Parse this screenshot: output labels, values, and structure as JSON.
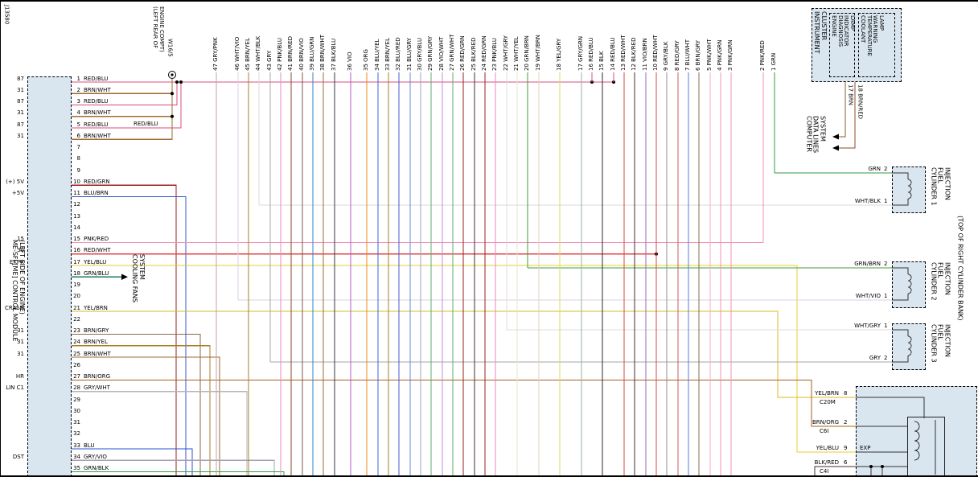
{
  "doc_id": "J13580",
  "palette": {
    "component_fill": "#d9e6f0",
    "frame": "#000000",
    "GRN": "#2f9e3f",
    "GRN/BLK": "#2f9e3f",
    "GRN/BLU": "#147a62",
    "GRN/BRN": "#3f9e35",
    "GRN/GRY": "#5cae6a",
    "GRN/WHT": "#5cae6a",
    "RED/BLU": "#d94f7e",
    "RED/GRN": "#9e1f1f",
    "RED/WHT": "#e04545",
    "RED/GRY": "#cf5a5a",
    "PNK/RED": "#f591b2",
    "PNK/GRN": "#f591b2",
    "PNK/BLU": "#ef86c0",
    "PNK/WHT": "#f8a8c8",
    "BRN/WHT": "#9c6b30",
    "BRN/GRY": "#8a6a50",
    "BRN/YEL": "#a97c28",
    "BRN/ORG": "#a5601e",
    "BRN/RED": "#8d4a2a",
    "BRN/VIO": "#7d5a46",
    "BRN": "#8b5e2a",
    "BLU/BRN": "#3a57c8",
    "BLU": "#2850d8",
    "BLU/GRN": "#2e7fd0",
    "BLU/YEL": "#3a6ad8",
    "BLU/RED": "#4858d0",
    "BLU/GRY": "#6a85d8",
    "BLU/WHT": "#5a7ae0",
    "YEL/BLU": "#e8cc30",
    "YEL/BRN": "#d8b820",
    "YEL/GRY": "#ded768",
    "GRY/WHT": "#b5b5b5",
    "GRY/VIO": "#a89fb3",
    "GRY": "#a6a6a6",
    "GRY/PNK": "#bfa6ae",
    "GRY/BLU": "#97a6bf",
    "GRY/GRN": "#9ab3a0",
    "GRY/BLK": "#8f8f8f",
    "WHT/BLK": "#d9d9d9",
    "WHT/VIO": "#dccfe6",
    "WHT/GRY": "#dcdcdc",
    "WHT/YEL": "#e8e6c8",
    "WHT/BRN": "#e0d2bd",
    "VIO": "#b05ad0",
    "VIO/BRN": "#9a6ab0",
    "VIO/WHT": "#c08ad8",
    "ORG": "#f08418",
    "BLK": "#2b2b2b",
    "BLK/BLU": "#353545",
    "BLK/RED": "#452d2d"
  },
  "module": {
    "name_lines": [
      "ME-SFI [ME] CONTROL MODULE",
      "(LEFT SIDE OF ENGINE)"
    ],
    "pins": [
      {
        "n": 1,
        "wire": "RED/BLU",
        "term": "87"
      },
      {
        "n": 2,
        "wire": "BRN/WHT",
        "term": "31"
      },
      {
        "n": 3,
        "wire": "RED/BLU",
        "term": "87"
      },
      {
        "n": 4,
        "wire": "BRN/WHT",
        "term": "31"
      },
      {
        "n": 5,
        "wire": "RED/BLU",
        "term": "87"
      },
      {
        "n": 6,
        "wire": "BRN/WHT",
        "term": "31"
      },
      {
        "n": 7,
        "wire": "",
        "term": ""
      },
      {
        "n": 8,
        "wire": "",
        "term": ""
      },
      {
        "n": 9,
        "wire": "",
        "term": ""
      },
      {
        "n": 10,
        "wire": "RED/GRN",
        "term": "(+) 5V"
      },
      {
        "n": 11,
        "wire": "BLU/BRN",
        "term": "+5V"
      },
      {
        "n": 12,
        "wire": "",
        "term": ""
      },
      {
        "n": 13,
        "wire": "",
        "term": ""
      },
      {
        "n": 14,
        "wire": "",
        "term": ""
      },
      {
        "n": 15,
        "wire": "PNK/RED",
        "term": "15"
      },
      {
        "n": 16,
        "wire": "RED/WHT",
        "term": "30"
      },
      {
        "n": 17,
        "wire": "YEL/BLU",
        "term": "EKPR"
      },
      {
        "n": 18,
        "wire": "GRN/BLU",
        "term": ""
      },
      {
        "n": 19,
        "wire": "",
        "term": ""
      },
      {
        "n": 20,
        "wire": "",
        "term": ""
      },
      {
        "n": 21,
        "wire": "YEL/BRN",
        "term": "CRASH"
      },
      {
        "n": 22,
        "wire": "",
        "term": ""
      },
      {
        "n": 23,
        "wire": "BRN/GRY",
        "term": "31"
      },
      {
        "n": 24,
        "wire": "BRN/YEL",
        "term": "31"
      },
      {
        "n": 25,
        "wire": "BRN/WHT",
        "term": "31"
      },
      {
        "n": 26,
        "wire": "",
        "term": ""
      },
      {
        "n": 27,
        "wire": "BRN/ORG",
        "term": "HR"
      },
      {
        "n": 28,
        "wire": "GRY/WHT",
        "term": "LIN C1"
      },
      {
        "n": 29,
        "wire": "",
        "term": ""
      },
      {
        "n": 30,
        "wire": "",
        "term": ""
      },
      {
        "n": 31,
        "wire": "",
        "term": ""
      },
      {
        "n": 32,
        "wire": "",
        "term": ""
      },
      {
        "n": 33,
        "wire": "BLU",
        "term": ""
      },
      {
        "n": 34,
        "wire": "GRY/VIO",
        "term": "DST"
      },
      {
        "n": 35,
        "wire": "GRN/BLK",
        "term": ""
      }
    ]
  },
  "ground_point": {
    "id": "W16/5",
    "location_lines": [
      "(LEFT REAR OF",
      "ENGINE COMPT)"
    ]
  },
  "inline_labels": {
    "red_blu_repeat": "RED/BLU"
  },
  "cooling_fans": {
    "lines": [
      "COOLING FANS",
      "SYSTEM"
    ]
  },
  "top_wires": [
    {
      "n": 47,
      "code": "GRY/PNK"
    },
    {
      "n": 46,
      "code": "WHT/VIO"
    },
    {
      "n": 45,
      "code": "BRN/YEL"
    },
    {
      "n": 44,
      "code": "WHT/BLK"
    },
    {
      "n": 43,
      "code": "GRY"
    },
    {
      "n": 42,
      "code": "PNK/BLU"
    },
    {
      "n": 41,
      "code": "BRN/RED"
    },
    {
      "n": 40,
      "code": "BRN/VIO"
    },
    {
      "n": 39,
      "code": "BLU/GRN"
    },
    {
      "n": 38,
      "code": "BRN/WHT"
    },
    {
      "n": 37,
      "code": "BLK/BLU"
    },
    {
      "n": 36,
      "code": "VIO"
    },
    {
      "n": 35,
      "code": "ORG"
    },
    {
      "n": 34,
      "code": "BLU/YEL"
    },
    {
      "n": 33,
      "code": "BRN/YEL"
    },
    {
      "n": 32,
      "code": "BLU/RED"
    },
    {
      "n": 31,
      "code": "BLU/GRY"
    },
    {
      "n": 30,
      "code": "GRY/BLU"
    },
    {
      "n": 29,
      "code": "GRN/GRY"
    },
    {
      "n": 28,
      "code": "VIO/WHT"
    },
    {
      "n": 27,
      "code": "GRN/WHT"
    },
    {
      "n": 26,
      "code": "RED/GRN"
    },
    {
      "n": 25,
      "code": "BLK/RED"
    },
    {
      "n": 24,
      "code": "RED/GRN"
    },
    {
      "n": 23,
      "code": "PNK/BLU"
    },
    {
      "n": 22,
      "code": "WHT/GRY"
    },
    {
      "n": 21,
      "code": "WHT/YEL"
    },
    {
      "n": 20,
      "code": "GRN/BRN"
    },
    {
      "n": 19,
      "code": "WHT/BRN"
    },
    {
      "n": 18,
      "code": "YEL/GRY"
    },
    {
      "n": 17,
      "code": "GRY/GRN"
    },
    {
      "n": 16,
      "code": "RED/BLU"
    },
    {
      "n": 15,
      "code": "BLK"
    },
    {
      "n": 14,
      "code": "RED/BLU"
    },
    {
      "n": 13,
      "code": "RED/WHT"
    },
    {
      "n": 12,
      "code": "BLK/RED"
    },
    {
      "n": 11,
      "code": "VIO/BRN"
    },
    {
      "n": 10,
      "code": "RED/WHT"
    },
    {
      "n": 9,
      "code": "GRY/BLK"
    },
    {
      "n": 8,
      "code": "RED/GRY"
    },
    {
      "n": 7,
      "code": "BLU/WHT"
    },
    {
      "n": 6,
      "code": "BRN/GRY"
    },
    {
      "n": 5,
      "code": "PNK/WHT"
    },
    {
      "n": 4,
      "code": "PNK/GRN"
    },
    {
      "n": 3,
      "code": "PNK/GRN"
    },
    {
      "n": 2,
      "code": "PNK/RED"
    },
    {
      "n": 1,
      "code": "GRN"
    }
  ],
  "instrument_cluster": {
    "title_lines": [
      "INSTRUMENT",
      "CLUSTER"
    ],
    "lamp1_lines": [
      "ENGINE",
      "DIAGNOSIS",
      "INDICATOR",
      "LAMP"
    ],
    "lamp2_lines": [
      "COOLANT",
      "TEMPERATURE",
      "WARNING",
      "LAMP"
    ],
    "pins": [
      {
        "n": "17",
        "code": "BRN"
      },
      {
        "n": "18",
        "code": "BRN/RED"
      }
    ]
  },
  "computer_data_lines": {
    "lines": [
      "COMPUTER",
      "DATA LINES",
      "SYSTEM"
    ]
  },
  "cylinders": [
    {
      "name_lines": [
        "CYLINDER 1",
        "FUEL",
        "INJECTION"
      ],
      "pins": [
        {
          "code": "GRN",
          "n": "2"
        },
        {
          "code": "WHT/BLK",
          "n": "1"
        }
      ]
    },
    {
      "name_lines": [
        "CYLINDER 2",
        "FUEL",
        "INJECTION"
      ],
      "pins": [
        {
          "code": "GRN/BRN",
          "n": "2"
        },
        {
          "code": "WHT/VIO",
          "n": "1"
        }
      ]
    },
    {
      "name_lines": [
        "CYLINDER 3",
        "FUEL",
        "INJECTION"
      ],
      "pins": [
        {
          "code": "WHT/GRY",
          "n": "1"
        },
        {
          "code": "GRY",
          "n": "2"
        }
      ]
    }
  ],
  "bank_note": "(TOP OF RIGHT CYLINDER BANK)",
  "bottom_component": {
    "inner_label": "EXP",
    "pins": [
      {
        "code": "YEL/BRN",
        "n": "8",
        "conn": "C20M"
      },
      {
        "code": "BRN/ORG",
        "n": "2",
        "conn": "C6I"
      },
      {
        "code": "YEL/BLU",
        "n": "9",
        "conn": ""
      },
      {
        "code": "BLK/RED",
        "n": "6",
        "conn": "C4I"
      }
    ]
  }
}
